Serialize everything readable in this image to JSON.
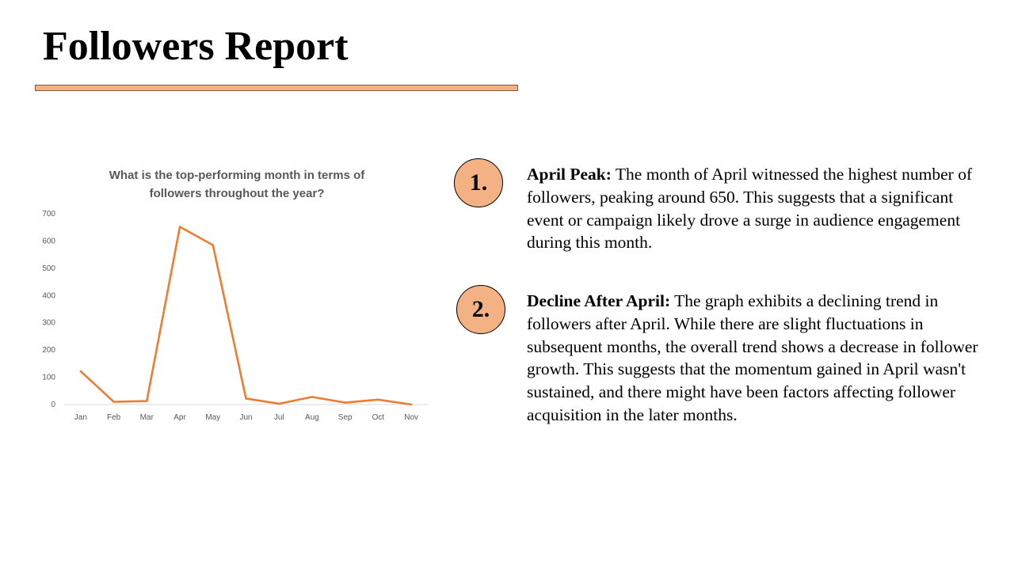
{
  "slide": {
    "title": "Followers Report",
    "accent_color": "#f4b183"
  },
  "points": [
    {
      "number": "1.",
      "heading": "April Peak:",
      "body": " The month of April witnessed the highest number of followers, peaking around 650. This suggests that a significant event or campaign likely drove a surge in audience engagement during this month."
    },
    {
      "number": "2.",
      "heading": "Decline After April:",
      "body": " The graph exhibits a declining trend in followers after April. While there are slight fluctuations in subsequent months, the overall trend shows a decrease in follower growth. This suggests that the momentum gained in April wasn't sustained, and there might have been factors affecting follower acquisition in the later months."
    }
  ],
  "chart_data": {
    "type": "line",
    "title": "What is the top-performing month in terms of followers throughout the year?",
    "categories": [
      "Jan",
      "Feb",
      "Mar",
      "Apr",
      "May",
      "Jun",
      "Jul",
      "Aug",
      "Sep",
      "Oct",
      "Nov"
    ],
    "series": [
      {
        "values": [
          122,
          10,
          13,
          652,
          585,
          22,
          3,
          28,
          7,
          18,
          0
        ],
        "color": "#ed7d31"
      }
    ],
    "ylim": [
      0,
      700
    ],
    "yticks": [
      0,
      100,
      200,
      300,
      400,
      500,
      600,
      700
    ],
    "grid": false,
    "legend": "none"
  }
}
